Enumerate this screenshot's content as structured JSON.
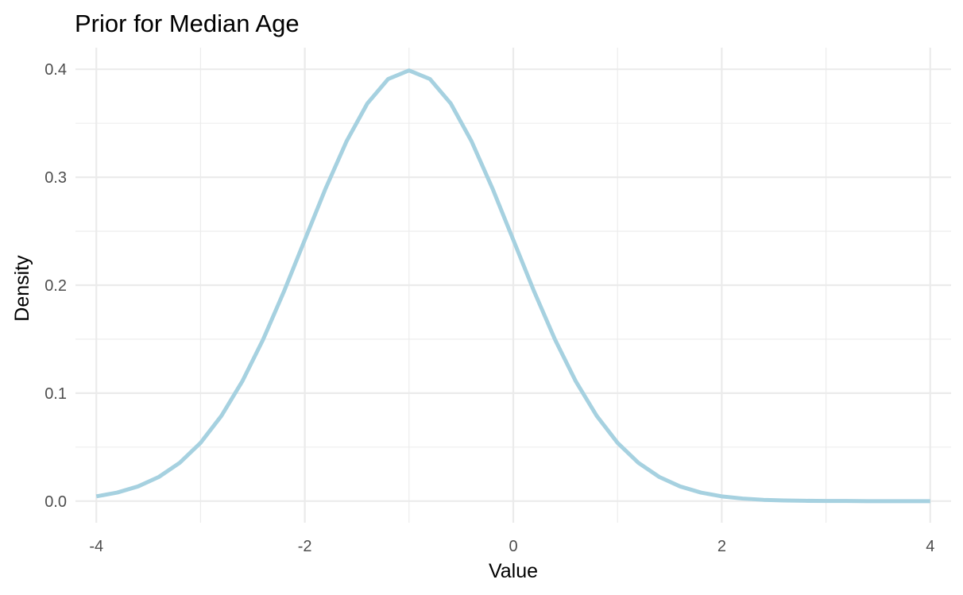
{
  "chart_data": {
    "type": "line",
    "title": "Prior for Median Age",
    "xlabel": "Value",
    "ylabel": "Density",
    "xlim": [
      -4.2,
      4.2
    ],
    "ylim": [
      -0.02,
      0.42
    ],
    "x_ticks": [
      -4,
      -2,
      0,
      2,
      4
    ],
    "x_tick_labels": [
      "-4",
      "-2",
      "0",
      "2",
      "4"
    ],
    "y_ticks": [
      0.0,
      0.1,
      0.2,
      0.3,
      0.4
    ],
    "y_tick_labels": [
      "0.0",
      "0.1",
      "0.2",
      "0.3",
      "0.4"
    ],
    "grid": true,
    "legend": "none",
    "series": [
      {
        "color": "#a6d1e0",
        "x": [
          -4.0,
          -3.8,
          -3.6,
          -3.4,
          -3.2,
          -3.0,
          -2.8,
          -2.6,
          -2.4,
          -2.2,
          -2.0,
          -1.8,
          -1.6,
          -1.4,
          -1.2,
          -1.0,
          -0.8,
          -0.6,
          -0.4,
          -0.2,
          0.0,
          0.2,
          0.4,
          0.6,
          0.8,
          1.0,
          1.2,
          1.4,
          1.6,
          1.8,
          2.0,
          2.2,
          2.4,
          2.6,
          2.8,
          3.0,
          3.2,
          3.4,
          3.6,
          3.8,
          4.0
        ],
        "y": [
          0.0044,
          0.0079,
          0.0136,
          0.0224,
          0.0355,
          0.054,
          0.079,
          0.1109,
          0.1497,
          0.1942,
          0.242,
          0.2897,
          0.3332,
          0.3683,
          0.391,
          0.3989,
          0.391,
          0.3683,
          0.3332,
          0.2897,
          0.242,
          0.1942,
          0.1497,
          0.1109,
          0.079,
          0.054,
          0.0355,
          0.0224,
          0.0136,
          0.0079,
          0.0044,
          0.0024,
          0.0012,
          0.0006,
          0.0003,
          0.0001,
          0.0001,
          0.0,
          0.0,
          0.0,
          0.0
        ]
      }
    ]
  }
}
